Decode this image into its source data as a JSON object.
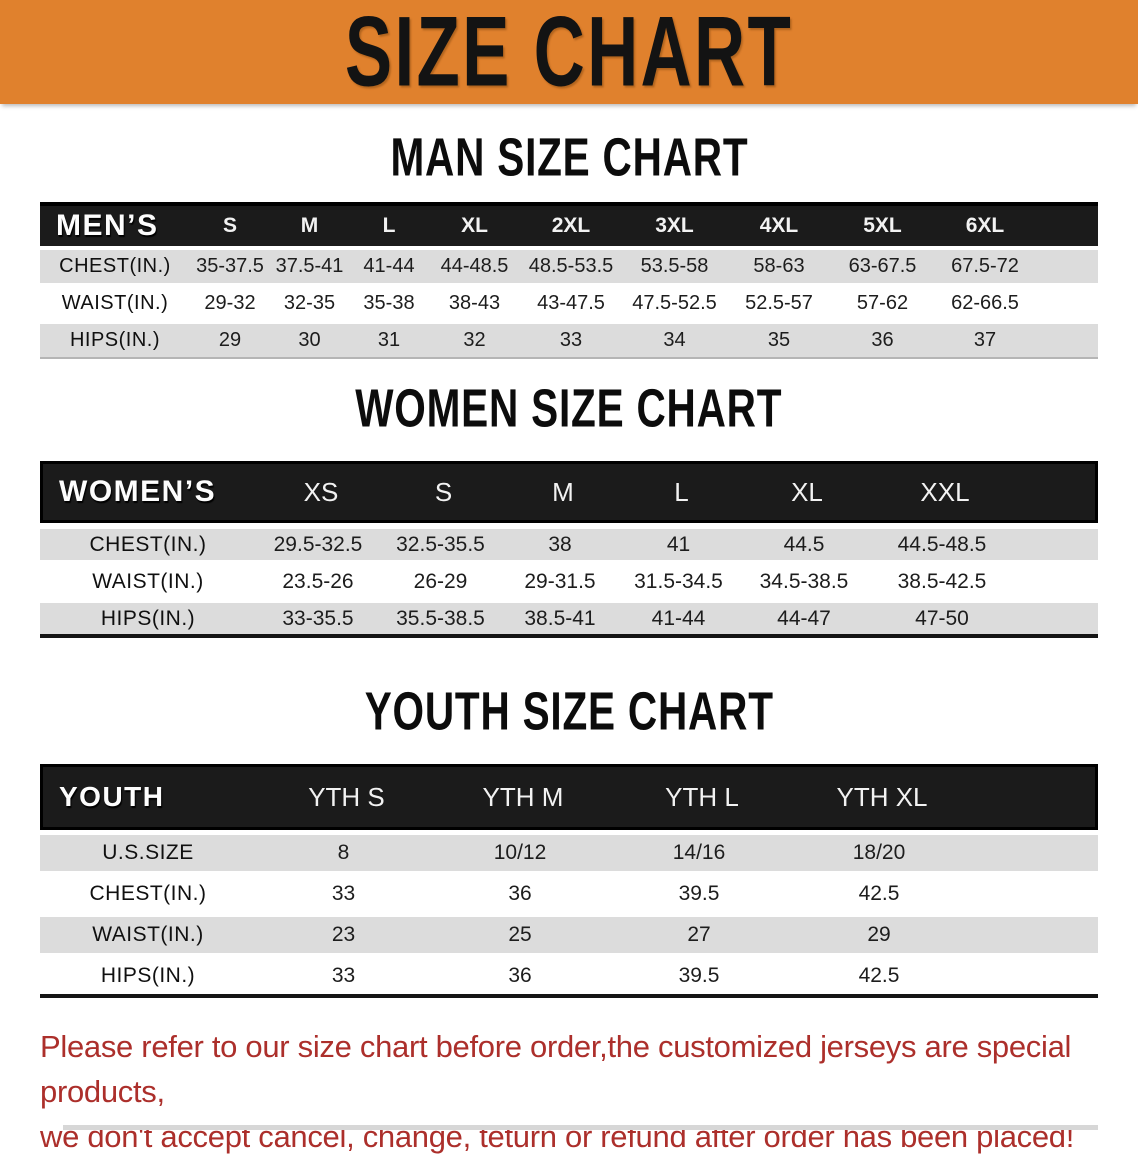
{
  "banner": {
    "title": "SIZE CHART",
    "bg_color": "#e0812d",
    "text_color": "#131313"
  },
  "colors": {
    "header_row_bg": "#1b1b1b",
    "alt_row_bg": "#dcdcdc",
    "footer_text": "#ac2f2b"
  },
  "sections": [
    {
      "heading": "MAN SIZE CHART",
      "corner": "MEN’S",
      "sizes": [
        "S",
        "M",
        "L",
        "XL",
        "2XL",
        "3XL",
        "4XL",
        "5XL",
        "6XL"
      ],
      "rows": [
        {
          "label": "CHEST(IN.)",
          "values": [
            "35-37.5",
            "37.5-41",
            "41-44",
            "44-48.5",
            "48.5-53.5",
            "53.5-58",
            "58-63",
            "63-67.5",
            "67.5-72"
          ]
        },
        {
          "label": "WAIST(IN.)",
          "values": [
            "29-32",
            "32-35",
            "35-38",
            "38-43",
            "43-47.5",
            "47.5-52.5",
            "52.5-57",
            "57-62",
            "62-66.5"
          ]
        },
        {
          "label": "HIPS(IN.)",
          "values": [
            "29",
            "30",
            "31",
            "32",
            "33",
            "34",
            "35",
            "36",
            "37"
          ]
        }
      ]
    },
    {
      "heading": "WOMEN SIZE CHART",
      "corner": "WOMEN’S",
      "sizes": [
        "XS",
        "S",
        "M",
        "L",
        "XL",
        "XXL"
      ],
      "rows": [
        {
          "label": "CHEST(IN.)",
          "values": [
            "29.5-32.5",
            "32.5-35.5",
            "38",
            "41",
            "44.5",
            "44.5-48.5"
          ]
        },
        {
          "label": "WAIST(IN.)",
          "values": [
            "23.5-26",
            "26-29",
            "29-31.5",
            "31.5-34.5",
            "34.5-38.5",
            "38.5-42.5"
          ]
        },
        {
          "label": "HIPS(IN.)",
          "values": [
            "33-35.5",
            "35.5-38.5",
            "38.5-41",
            "41-44",
            "44-47",
            "47-50"
          ]
        }
      ]
    },
    {
      "heading": "YOUTH SIZE CHART",
      "corner": "YOUTH",
      "sizes": [
        "YTH S",
        "YTH M",
        "YTH L",
        "YTH XL"
      ],
      "rows": [
        {
          "label": "U.S.SIZE",
          "values": [
            "8",
            "10/12",
            "14/16",
            "18/20"
          ]
        },
        {
          "label": "CHEST(IN.)",
          "values": [
            "33",
            "36",
            "39.5",
            "42.5"
          ]
        },
        {
          "label": "WAIST(IN.)",
          "values": [
            "23",
            "25",
            "27",
            "29"
          ]
        },
        {
          "label": "HIPS(IN.)",
          "values": [
            "33",
            "36",
            "39.5",
            "42.5"
          ]
        }
      ]
    }
  ],
  "footer": {
    "line1": "Please refer to our size chart before order,the customized jerseys are special products,",
    "line2": "we don't accept cancel, change, teturn or refund after order has been placed!"
  }
}
